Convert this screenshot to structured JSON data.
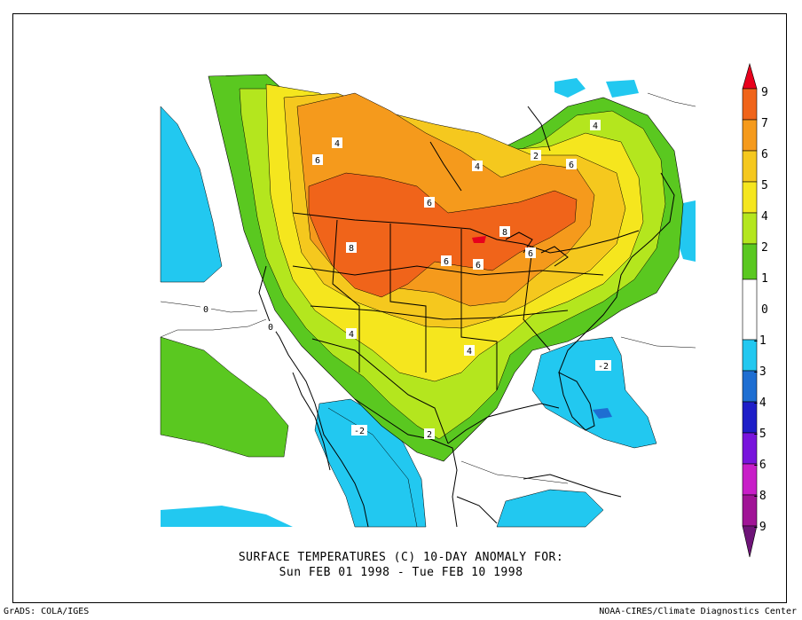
{
  "title": {
    "line1": "SURFACE TEMPERATURES (C)   10-DAY ANOMALY FOR:",
    "line2": "Sun FEB 01 1998 - Tue FEB 10 1998"
  },
  "footer": {
    "left": "GrADS: COLA/IGES",
    "right": "NOAA-CIRES/Climate Diagnostics Center"
  },
  "colorbar": {
    "labels": [
      "9",
      "7",
      "6",
      "5",
      "4",
      "2",
      "1",
      "0",
      "-1",
      "-3",
      "-4",
      "-5",
      "-6",
      "-8",
      "-9"
    ],
    "colors": [
      "#e8001c",
      "#f0641a",
      "#f59a1c",
      "#f5c81e",
      "#f5e61e",
      "#b4e61e",
      "#5ac820",
      "#ffffff",
      "#22c8f0",
      "#1e6ed2",
      "#1e1ec8",
      "#7814dc",
      "#c81ec8",
      "#a01496",
      "#6e1478"
    ]
  },
  "contour_labels": [
    {
      "text": "4"
    },
    {
      "text": "6"
    },
    {
      "text": "4"
    },
    {
      "text": "2"
    },
    {
      "text": "6"
    },
    {
      "text": "4"
    },
    {
      "text": "6"
    },
    {
      "text": "8"
    },
    {
      "text": "6"
    },
    {
      "text": "8"
    },
    {
      "text": "6"
    },
    {
      "text": "6"
    },
    {
      "text": "4"
    },
    {
      "text": "4"
    },
    {
      "text": "0"
    },
    {
      "text": "0"
    },
    {
      "text": "-2"
    },
    {
      "text": "-2"
    },
    {
      "text": "2"
    }
  ]
}
